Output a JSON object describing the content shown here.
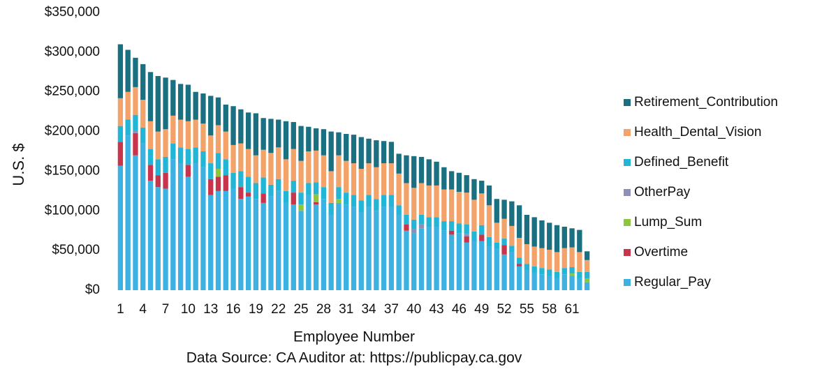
{
  "chart_data": {
    "type": "stacked_bar",
    "y_label": "U.S. $",
    "x_label": "Employee Number",
    "source": "Data Source: CA Auditor at: https://publicpay.ca.gov",
    "categories": [
      "1",
      null,
      null,
      "4",
      null,
      null,
      "7",
      null,
      null,
      "10",
      null,
      null,
      "13",
      null,
      null,
      "16",
      null,
      null,
      "19",
      null,
      null,
      "22",
      null,
      null,
      "25",
      null,
      null,
      "28",
      null,
      null,
      "31",
      null,
      null,
      "34",
      null,
      null,
      "37",
      null,
      null,
      "40",
      null,
      null,
      "43",
      null,
      null,
      "46",
      null,
      null,
      "49",
      null,
      null,
      "52",
      null,
      null,
      "55",
      null,
      null,
      "58",
      null,
      null,
      "61",
      null,
      null
    ],
    "ylim": [
      0,
      350000
    ],
    "yticks": [
      {
        "value": 0,
        "label": "$0"
      },
      {
        "value": 50000,
        "label": "$50,000"
      },
      {
        "value": 100000,
        "label": "$100,000"
      },
      {
        "value": 150000,
        "label": "$150,000"
      },
      {
        "value": 200000,
        "label": "$200,000"
      },
      {
        "value": 250000,
        "label": "$250,000"
      },
      {
        "value": 300000,
        "label": "$300,000"
      },
      {
        "value": 350000,
        "label": "$350,000"
      }
    ],
    "grid": false,
    "legend": "right",
    "series": [
      {
        "name": "Regular_Pay",
        "color": "#3cb1e2",
        "values": [
          157000,
          195000,
          170000,
          185000,
          138000,
          130000,
          128000,
          165000,
          160000,
          143000,
          160000,
          155000,
          120000,
          125000,
          125000,
          128000,
          115000,
          118000,
          115000,
          110000,
          118000,
          125000,
          110000,
          108000,
          100000,
          120000,
          108000,
          115000,
          95000,
          110000,
          108000,
          105000,
          98000,
          105000,
          100000,
          105000,
          105000,
          95000,
          75000,
          72000,
          78000,
          80000,
          80000,
          75000,
          70000,
          72000,
          60000,
          62000,
          62000,
          55000,
          52000,
          45000,
          48000,
          30000,
          25000,
          22000,
          20000,
          18000,
          15000,
          20000,
          18000,
          15000,
          10000
        ]
      },
      {
        "name": "Overtime",
        "color": "#c8344a",
        "values": [
          30000,
          0,
          28000,
          0,
          20000,
          15000,
          20000,
          0,
          0,
          15000,
          0,
          0,
          20000,
          18000,
          20000,
          0,
          15000,
          5000,
          0,
          12000,
          0,
          0,
          0,
          15000,
          0,
          0,
          3000,
          0,
          0,
          0,
          0,
          0,
          0,
          0,
          0,
          0,
          0,
          0,
          8000,
          0,
          0,
          0,
          0,
          0,
          5000,
          0,
          8000,
          0,
          8000,
          0,
          0,
          12000,
          0,
          3000,
          0,
          0,
          0,
          0,
          0,
          0,
          0,
          0,
          0
        ]
      },
      {
        "name": "Lump_Sum",
        "color": "#8cc63f",
        "values": [
          0,
          0,
          0,
          0,
          0,
          0,
          0,
          0,
          0,
          0,
          0,
          0,
          0,
          10000,
          0,
          0,
          0,
          0,
          0,
          0,
          0,
          0,
          0,
          0,
          8000,
          0,
          10000,
          0,
          0,
          5000,
          0,
          0,
          0,
          0,
          0,
          0,
          0,
          0,
          0,
          0,
          0,
          0,
          0,
          0,
          0,
          0,
          0,
          0,
          0,
          0,
          0,
          0,
          0,
          0,
          0,
          0,
          0,
          0,
          0,
          0,
          3000,
          0,
          5000
        ]
      },
      {
        "name": "OtherPay",
        "color": "#8e8fb5",
        "values": [
          0,
          0,
          3000,
          0,
          0,
          0,
          0,
          0,
          0,
          0,
          0,
          0,
          0,
          0,
          0,
          0,
          0,
          0,
          0,
          0,
          0,
          0,
          0,
          0,
          0,
          0,
          0,
          0,
          0,
          0,
          0,
          0,
          0,
          0,
          0,
          0,
          0,
          0,
          0,
          5000,
          5000,
          0,
          0,
          0,
          0,
          0,
          3000,
          0,
          0,
          0,
          0,
          0,
          0,
          0,
          0,
          0,
          0,
          0,
          0,
          0,
          0,
          0,
          0
        ]
      },
      {
        "name": "Defined_Benefit",
        "color": "#23b5d6",
        "values": [
          20000,
          20000,
          20000,
          20000,
          20000,
          20000,
          20000,
          20000,
          20000,
          20000,
          20000,
          20000,
          20000,
          20000,
          20000,
          20000,
          20000,
          20000,
          20000,
          20000,
          15000,
          15000,
          15000,
          15000,
          15000,
          15000,
          15000,
          15000,
          15000,
          15000,
          15000,
          15000,
          15000,
          15000,
          15000,
          15000,
          15000,
          12000,
          12000,
          12000,
          12000,
          12000,
          12000,
          12000,
          12000,
          12000,
          12000,
          12000,
          12000,
          12000,
          8000,
          8000,
          8000,
          8000,
          8000,
          8000,
          8000,
          8000,
          8000,
          8000,
          8000,
          8000,
          8000
        ]
      },
      {
        "name": "Health_Dental_Vision",
        "color": "#f3a36a",
        "values": [
          35000,
          35000,
          35000,
          35000,
          35000,
          35000,
          35000,
          35000,
          35000,
          35000,
          35000,
          35000,
          35000,
          35000,
          35000,
          35000,
          35000,
          35000,
          35000,
          35000,
          40000,
          40000,
          40000,
          40000,
          40000,
          40000,
          40000,
          40000,
          40000,
          40000,
          40000,
          40000,
          40000,
          40000,
          40000,
          40000,
          40000,
          40000,
          40000,
          40000,
          40000,
          40000,
          40000,
          40000,
          40000,
          40000,
          40000,
          40000,
          40000,
          40000,
          25000,
          25000,
          25000,
          25000,
          25000,
          25000,
          25000,
          25000,
          25000,
          25000,
          25000,
          25000,
          15000
        ]
      },
      {
        "name": "Retirement_Contribution",
        "color": "#1a6f80",
        "values": [
          68000,
          53000,
          37000,
          45000,
          62000,
          70000,
          65000,
          45000,
          45000,
          46000,
          35000,
          38000,
          50000,
          35000,
          34000,
          49000,
          43000,
          46000,
          53000,
          40000,
          43000,
          35000,
          48000,
          34000,
          44000,
          31000,
          28000,
          33000,
          50000,
          29000,
          34000,
          36000,
          40000,
          31000,
          34000,
          28000,
          27000,
          25000,
          35000,
          40000,
          33000,
          33000,
          30000,
          28000,
          23000,
          24000,
          22000,
          26000,
          16000,
          25000,
          30000,
          24000,
          31000,
          41000,
          37000,
          37000,
          35000,
          34000,
          34000,
          27000,
          24000,
          28000,
          11000
        ]
      }
    ]
  }
}
